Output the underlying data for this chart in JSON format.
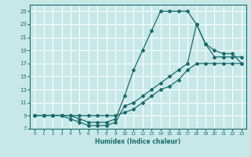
{
  "xlabel": "Humidex (Indice chaleur)",
  "bg_color": "#c8e8e8",
  "grid_color": "#ffffff",
  "line_color": "#1a6b6b",
  "xlim": [
    -0.5,
    23.5
  ],
  "ylim": [
    7,
    26
  ],
  "xticks": [
    0,
    1,
    2,
    3,
    4,
    5,
    6,
    7,
    8,
    9,
    10,
    11,
    12,
    13,
    14,
    15,
    16,
    17,
    18,
    19,
    20,
    21,
    22,
    23
  ],
  "yticks": [
    7,
    9,
    11,
    13,
    15,
    17,
    19,
    21,
    23,
    25
  ],
  "line1_x": [
    0,
    1,
    2,
    3,
    4,
    5,
    6,
    7,
    8,
    9,
    10,
    11,
    12,
    13,
    14,
    15,
    16,
    17,
    18,
    19,
    20,
    21,
    22,
    23
  ],
  "line1_y": [
    9,
    9,
    9,
    9,
    9,
    8.5,
    8,
    8,
    8,
    8.5,
    12,
    16,
    19,
    22,
    25,
    25,
    25,
    25,
    23,
    20,
    19,
    18.5,
    18.5,
    17
  ],
  "line2_x": [
    0,
    1,
    2,
    3,
    4,
    5,
    6,
    7,
    8,
    9,
    10,
    11,
    12,
    13,
    14,
    15,
    16,
    17,
    18,
    19,
    20,
    21,
    22,
    23
  ],
  "line2_y": [
    9,
    9,
    9,
    9,
    8.5,
    8,
    7.5,
    7.5,
    7.5,
    8,
    10.5,
    11,
    12,
    13,
    14,
    15,
    16,
    17,
    23,
    20,
    18,
    18,
    18,
    18
  ],
  "line3_x": [
    0,
    1,
    2,
    3,
    4,
    5,
    6,
    7,
    8,
    9,
    10,
    11,
    12,
    13,
    14,
    15,
    16,
    17,
    18,
    19,
    20,
    21,
    22,
    23
  ],
  "line3_y": [
    9,
    9,
    9,
    9,
    9,
    9,
    9,
    9,
    9,
    9,
    9.5,
    10,
    11,
    12,
    13,
    13.5,
    14.5,
    16,
    17,
    17,
    17,
    17,
    17,
    17
  ]
}
